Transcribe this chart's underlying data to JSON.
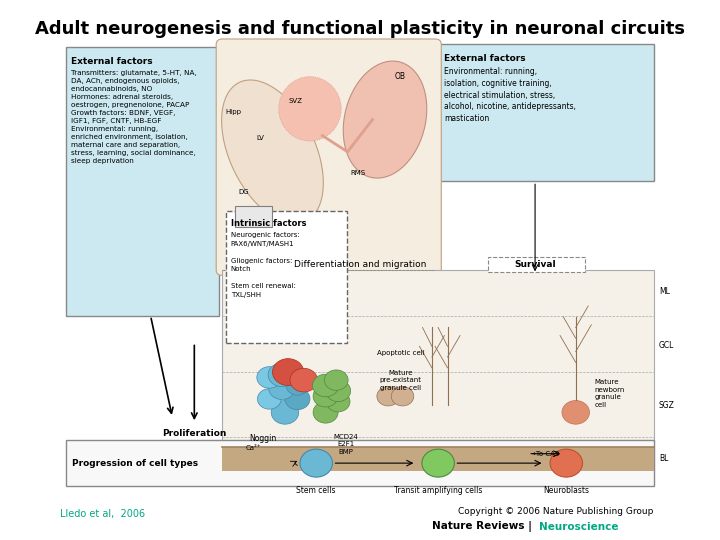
{
  "title": "Adult neurogenesis and functional plasticity in neuronal circuits",
  "title_fontsize": 13,
  "title_fontstyle": "bold",
  "citation_left": "Lledo et al,  2006",
  "citation_left_color": "#00a884",
  "citation_right_line1": "Copyright © 2006 Nature Publishing Group",
  "citation_right_line2_normal": "Nature Reviews | ",
  "citation_right_line2_colored": "Neuroscience",
  "citation_right_color": "#00a884",
  "background_color": "#ffffff",
  "left_box_color": "#cce8f0",
  "right_box_color": "#cce8f0",
  "left_box_title": "External factors",
  "left_box_text": "Transmitters: glutamate, 5-HT, NA,\nDA, ACh, endogenous opioids,\nendocannabinoids, NO\nHormones: adrenal steroids,\noestrogen, pregnenolone, PACAP\nGrowth factors: BDNF, VEGF,\nIGF1, FGF, CNTF, HB-EGF\nEnvironmental: running,\nenriched environment, isolation,\nmaternal care and separation,\nstress, learning, social dominance,\nsleep deprivation",
  "right_box_title": "External factors",
  "right_box_text": "Environmental: running,\nisolation, cognitive training,\nelectrical stimulation, stress,\nalcohol, nicotine, antidepressants,\nmastication",
  "intrinsic_box_title": "Intrinsic factors",
  "intrinsic_box_text": "Neurogenic factors:\nPAX6/WNT/MASH1\n\nGliogenic factors:\nNotch\n\nStem cell renewal:\nTXL/SHH",
  "diff_migration_text": "Differentiation and migration",
  "survival_text": "Survival",
  "proliferation_text": "Proliferation",
  "progression_text": "Progression of cell types",
  "stem_cells_text": "Stem cells",
  "transit_text": "Transit amplifying cells",
  "neuroblasts_text": "Neuroblasts"
}
